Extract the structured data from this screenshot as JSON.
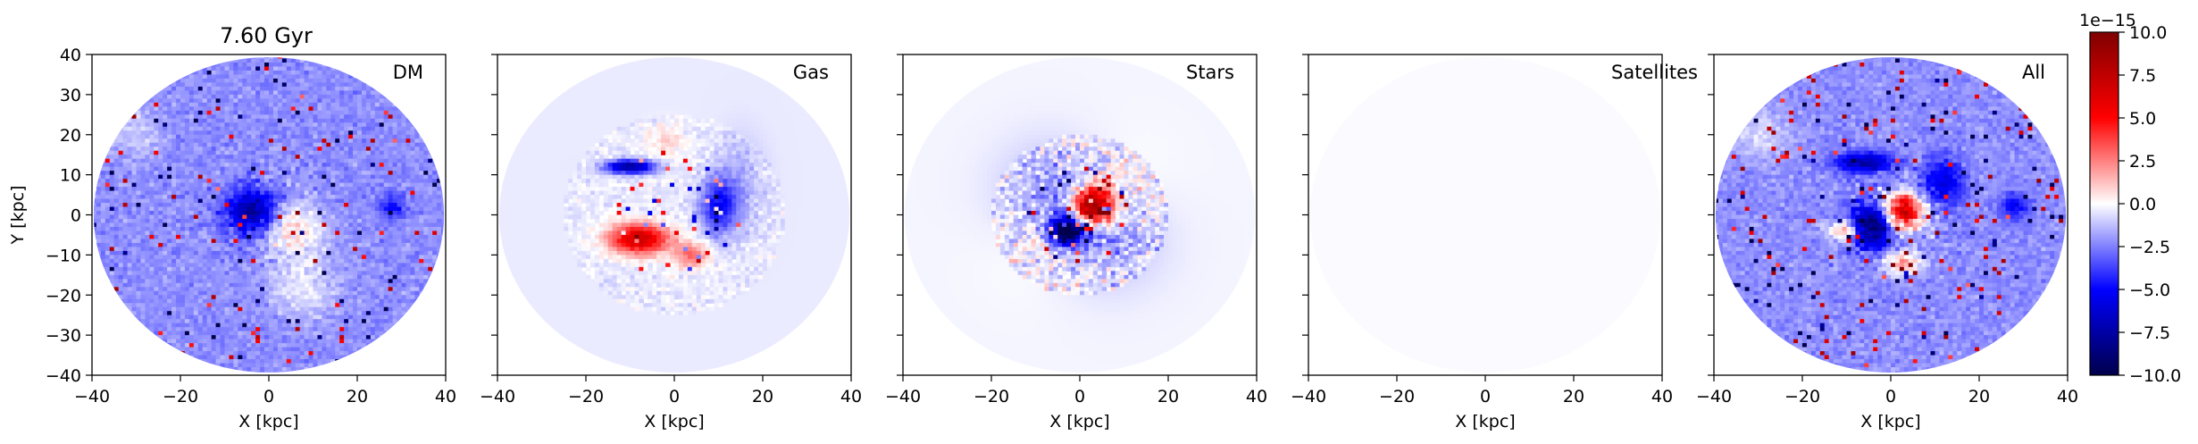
{
  "title": "7.60 Gyr",
  "chart_data": {
    "type": "heatmap",
    "panels": [
      {
        "name": "DM",
        "pattern": "dm",
        "xlabel": "X [kpc]",
        "ylabel": "Y [kpc]"
      },
      {
        "name": "Gas",
        "pattern": "gas",
        "xlabel": "X [kpc]",
        "ylabel": ""
      },
      {
        "name": "Stars",
        "pattern": "stars",
        "xlabel": "X [kpc]",
        "ylabel": ""
      },
      {
        "name": "Satellites",
        "pattern": "sat",
        "xlabel": "X [kpc]",
        "ylabel": ""
      },
      {
        "name": "All",
        "pattern": "all",
        "xlabel": "X [kpc]",
        "ylabel": ""
      }
    ],
    "xlim": [
      -40,
      40
    ],
    "ylim": [
      -40,
      40
    ],
    "xticks": [
      -40,
      -20,
      0,
      20,
      40
    ],
    "xtick_labels": [
      "−40",
      "−20",
      "0",
      "20",
      "40"
    ],
    "yticks": [
      -40,
      -30,
      -20,
      -10,
      0,
      10,
      20,
      30,
      40
    ],
    "ytick_labels": [
      "−40",
      "−30",
      "−20",
      "−10",
      "0",
      "10",
      "20",
      "30",
      "40"
    ],
    "colorbar": {
      "cmap": "seismic",
      "vmin": -10.0,
      "vmax": 10.0,
      "ticks": [
        -10.0,
        -7.5,
        -5.0,
        -2.5,
        0.0,
        2.5,
        5.0,
        7.5,
        10.0
      ],
      "tick_labels": [
        "−10.0",
        "−7.5",
        "−5.0",
        "−2.5",
        "0.0",
        "2.5",
        "5.0",
        "7.5",
        "10.0"
      ],
      "offset_text": "1e−15",
      "colors": {
        "low": "#00004c",
        "mid_low": "#0000ff",
        "mid": "#ffffff",
        "mid_high": "#ff0000",
        "high": "#800000"
      }
    }
  }
}
